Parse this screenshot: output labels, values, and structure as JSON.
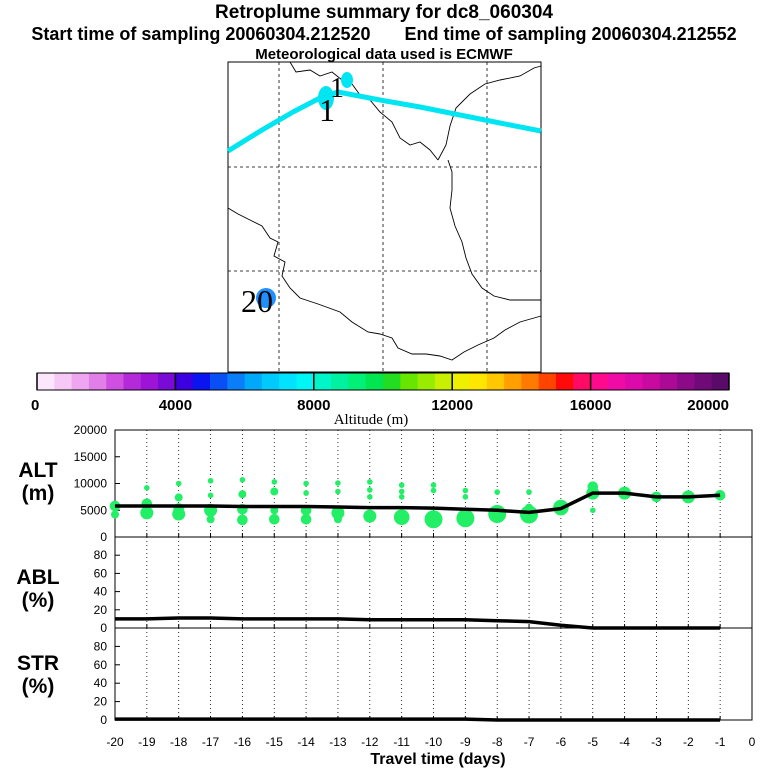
{
  "header": {
    "title": "Retroplume summary for dc8_060304",
    "start_label": "Start time of sampling 20060304.212520",
    "end_label": "End time of sampling 20060304.212552",
    "met_label": "Meteorological data used is ECMWF"
  },
  "colors": {
    "trajectory": "#00e5f2",
    "marker_blue": "#1e90ff",
    "dots": "#22ee66",
    "line": "#000000",
    "grid": "#000000"
  },
  "map": {
    "day_markers": [
      {
        "label": "1",
        "day": -1
      },
      {
        "label": "20",
        "day": -20
      }
    ]
  },
  "colorbar": {
    "label": "Altitude (m)",
    "ticks": [
      "0",
      "4000",
      "8000",
      "12000",
      "16000",
      "20000"
    ],
    "colors": [
      "#fbe6fb",
      "#f6c8f6",
      "#eea6f0",
      "#e27ee8",
      "#cf4fe0",
      "#b52ad8",
      "#9d14d6",
      "#7a0ad6",
      "#3c00e0",
      "#0a14f0",
      "#0a4ef5",
      "#0a7ef8",
      "#00a8fa",
      "#00cafc",
      "#00e2fd",
      "#00f5f5",
      "#00f5c8",
      "#00f2a0",
      "#00f078",
      "#00e650",
      "#22dd22",
      "#66e600",
      "#99ec00",
      "#c8f000",
      "#eef000",
      "#ffe600",
      "#ffc800",
      "#ffa000",
      "#ff7a00",
      "#ff4400",
      "#ff0a0a",
      "#ff0a64",
      "#ff0a8c",
      "#f00aa6",
      "#dc0aaa",
      "#c80aa0",
      "#aa0a96",
      "#8c0a88",
      "#700a78",
      "#5a0a68"
    ]
  },
  "chart_data": {
    "type": "line",
    "xlabel": "Travel time (days)",
    "xlim": [
      -20,
      0
    ],
    "x_ticks": [
      "-20",
      "-19",
      "-18",
      "-17",
      "-16",
      "-15",
      "-14",
      "-13",
      "-12",
      "-11",
      "-10",
      "-9",
      "-8",
      "-7",
      "-6",
      "-5",
      "-4",
      "-3",
      "-2",
      "-1",
      "0"
    ],
    "days": [
      -20,
      -19,
      -18,
      -17,
      -16,
      -15,
      -14,
      -13,
      -12,
      -11,
      -10,
      -9,
      -8,
      -7,
      -6,
      -5,
      -4,
      -3,
      -2,
      -1
    ],
    "panels": [
      {
        "id": "alt",
        "label": "ALT",
        "unit": "(m)",
        "ylim": [
          0,
          20000
        ],
        "y_ticks": [
          "0",
          "5000",
          "10000",
          "15000",
          "20000"
        ],
        "mean": [
          5800,
          5800,
          5800,
          5800,
          5700,
          5700,
          5700,
          5600,
          5500,
          5500,
          5400,
          5200,
          5000,
          4600,
          5300,
          8200,
          8200,
          7500,
          7500,
          7800
        ],
        "dots": [
          {
            "day": -20,
            "alt": 5800,
            "size": 3
          },
          {
            "day": -20,
            "alt": 4200,
            "size": 2
          },
          {
            "day": -19,
            "alt": 9200,
            "size": 1
          },
          {
            "day": -19,
            "alt": 6200,
            "size": 3
          },
          {
            "day": -19,
            "alt": 4500,
            "size": 4
          },
          {
            "day": -18,
            "alt": 10000,
            "size": 1
          },
          {
            "day": -18,
            "alt": 7400,
            "size": 2
          },
          {
            "day": -18,
            "alt": 5300,
            "size": 3
          },
          {
            "day": -18,
            "alt": 4300,
            "size": 4
          },
          {
            "day": -17,
            "alt": 10500,
            "size": 1
          },
          {
            "day": -17,
            "alt": 7800,
            "size": 1
          },
          {
            "day": -17,
            "alt": 5000,
            "size": 4
          },
          {
            "day": -17,
            "alt": 3300,
            "size": 2
          },
          {
            "day": -16,
            "alt": 10700,
            "size": 1
          },
          {
            "day": -16,
            "alt": 8000,
            "size": 2
          },
          {
            "day": -16,
            "alt": 5200,
            "size": 3
          },
          {
            "day": -16,
            "alt": 3200,
            "size": 3
          },
          {
            "day": -15,
            "alt": 10300,
            "size": 1
          },
          {
            "day": -15,
            "alt": 8500,
            "size": 2
          },
          {
            "day": -15,
            "alt": 5000,
            "size": 2
          },
          {
            "day": -15,
            "alt": 3300,
            "size": 3
          },
          {
            "day": -14,
            "alt": 10000,
            "size": 1
          },
          {
            "day": -14,
            "alt": 8200,
            "size": 1
          },
          {
            "day": -14,
            "alt": 5000,
            "size": 3
          },
          {
            "day": -14,
            "alt": 3300,
            "size": 3
          },
          {
            "day": -13,
            "alt": 10100,
            "size": 1
          },
          {
            "day": -13,
            "alt": 8500,
            "size": 1
          },
          {
            "day": -13,
            "alt": 4500,
            "size": 4
          },
          {
            "day": -13,
            "alt": 3300,
            "size": 2
          },
          {
            "day": -12,
            "alt": 10300,
            "size": 1
          },
          {
            "day": -12,
            "alt": 8800,
            "size": 1
          },
          {
            "day": -12,
            "alt": 7500,
            "size": 1
          },
          {
            "day": -12,
            "alt": 3900,
            "size": 4
          },
          {
            "day": -11,
            "alt": 9700,
            "size": 1
          },
          {
            "day": -11,
            "alt": 8500,
            "size": 1
          },
          {
            "day": -11,
            "alt": 7500,
            "size": 1
          },
          {
            "day": -11,
            "alt": 3700,
            "size": 5
          },
          {
            "day": -10,
            "alt": 9700,
            "size": 1
          },
          {
            "day": -10,
            "alt": 8700,
            "size": 1
          },
          {
            "day": -10,
            "alt": 3300,
            "size": 6
          },
          {
            "day": -9,
            "alt": 8700,
            "size": 1
          },
          {
            "day": -9,
            "alt": 7500,
            "size": 1
          },
          {
            "day": -9,
            "alt": 3500,
            "size": 6
          },
          {
            "day": -8,
            "alt": 8400,
            "size": 1
          },
          {
            "day": -8,
            "alt": 4300,
            "size": 6
          },
          {
            "day": -7,
            "alt": 8400,
            "size": 1
          },
          {
            "day": -7,
            "alt": 5500,
            "size": 2
          },
          {
            "day": -7,
            "alt": 4200,
            "size": 6
          },
          {
            "day": -6,
            "alt": 5500,
            "size": 5
          },
          {
            "day": -5,
            "alt": 9400,
            "size": 3
          },
          {
            "day": -5,
            "alt": 8200,
            "size": 4
          },
          {
            "day": -5,
            "alt": 5000,
            "size": 1
          },
          {
            "day": -4,
            "alt": 8200,
            "size": 4
          },
          {
            "day": -3,
            "alt": 7500,
            "size": 3
          },
          {
            "day": -2,
            "alt": 7500,
            "size": 4
          },
          {
            "day": -1,
            "alt": 7800,
            "size": 3
          }
        ]
      },
      {
        "id": "abl",
        "label": "ABL",
        "unit": "(%)",
        "ylim": [
          0,
          100
        ],
        "y_ticks": [
          "0",
          "20",
          "40",
          "60",
          "80"
        ],
        "mean": [
          10,
          10,
          11,
          11,
          10,
          10,
          10,
          10,
          9,
          9,
          9,
          9,
          8,
          7,
          3,
          0,
          0,
          0,
          0,
          0
        ]
      },
      {
        "id": "str",
        "label": "STR",
        "unit": "(%)",
        "ylim": [
          0,
          100
        ],
        "y_ticks": [
          "0",
          "20",
          "40",
          "60",
          "80"
        ],
        "mean": [
          1,
          1,
          1,
          1,
          1,
          1,
          1,
          1,
          1,
          1,
          1,
          1,
          0,
          0,
          0,
          0,
          0,
          0,
          0,
          0
        ]
      }
    ]
  }
}
